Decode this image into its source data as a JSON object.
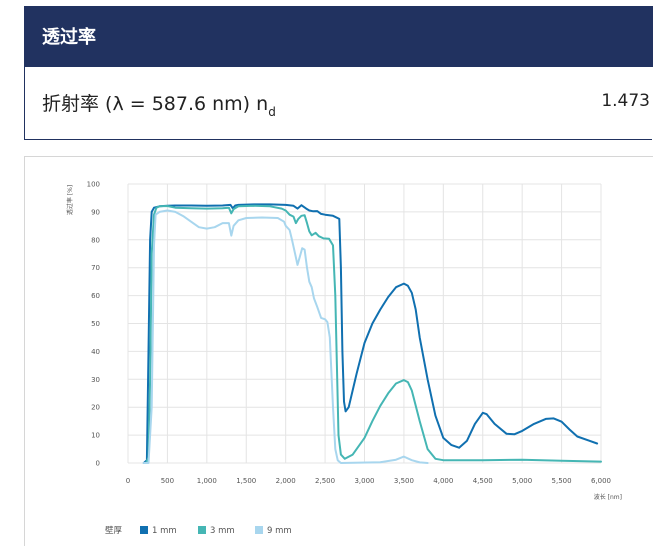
{
  "header": {
    "title": "透过率"
  },
  "property": {
    "label": "折射率 (λ = 587.6 nm) n",
    "subscript": "d",
    "value": "1.473"
  },
  "chart_data": {
    "type": "line",
    "xlabel": "波长 [nm]",
    "ylabel": "透过率 [%]",
    "xlim": [
      0,
      6000
    ],
    "ylim": [
      0,
      100
    ],
    "xticks": [
      0,
      500,
      1000,
      1500,
      2000,
      2500,
      3000,
      3500,
      4000,
      4500,
      5000,
      5500,
      6000
    ],
    "xtick_labels": [
      "0",
      "500",
      "1,000",
      "1,500",
      "2,000",
      "2,500",
      "3,000",
      "3,500",
      "4,000",
      "4,500",
      "5,000",
      "5,500",
      "6,000"
    ],
    "yticks": [
      0,
      10,
      20,
      30,
      40,
      50,
      60,
      70,
      80,
      90,
      100
    ],
    "grid": true,
    "legend": {
      "title": "壁厚",
      "position": "bottom-left"
    },
    "series": [
      {
        "name": "1 mm",
        "color": "#1070b0",
        "points": [
          [
            200,
            0
          ],
          [
            240,
            1
          ],
          [
            260,
            40
          ],
          [
            280,
            80
          ],
          [
            300,
            90
          ],
          [
            330,
            91.5
          ],
          [
            400,
            92
          ],
          [
            500,
            92.2
          ],
          [
            600,
            92.3
          ],
          [
            800,
            92.3
          ],
          [
            1000,
            92.2
          ],
          [
            1200,
            92.3
          ],
          [
            1300,
            92.5
          ],
          [
            1330,
            91.3
          ],
          [
            1360,
            92.3
          ],
          [
            1400,
            92.5
          ],
          [
            1600,
            92.7
          ],
          [
            1800,
            92.7
          ],
          [
            2000,
            92.5
          ],
          [
            2100,
            92.2
          ],
          [
            2150,
            91.2
          ],
          [
            2200,
            92.4
          ],
          [
            2260,
            91.2
          ],
          [
            2300,
            90.5
          ],
          [
            2350,
            90.2
          ],
          [
            2400,
            90.3
          ],
          [
            2450,
            89.3
          ],
          [
            2500,
            89
          ],
          [
            2600,
            88.6
          ],
          [
            2680,
            87.5
          ],
          [
            2700,
            70
          ],
          [
            2720,
            40
          ],
          [
            2740,
            22
          ],
          [
            2760,
            18.5
          ],
          [
            2800,
            20
          ],
          [
            2900,
            32
          ],
          [
            3000,
            43
          ],
          [
            3100,
            50
          ],
          [
            3200,
            55
          ],
          [
            3300,
            59.5
          ],
          [
            3400,
            63
          ],
          [
            3500,
            64.3
          ],
          [
            3550,
            63.5
          ],
          [
            3600,
            61
          ],
          [
            3650,
            55
          ],
          [
            3700,
            45
          ],
          [
            3800,
            30
          ],
          [
            3900,
            17
          ],
          [
            4000,
            9
          ],
          [
            4100,
            6.5
          ],
          [
            4200,
            5.5
          ],
          [
            4300,
            8
          ],
          [
            4400,
            14
          ],
          [
            4500,
            18
          ],
          [
            4550,
            17.5
          ],
          [
            4650,
            14
          ],
          [
            4800,
            10.5
          ],
          [
            4900,
            10.3
          ],
          [
            5000,
            11.5
          ],
          [
            5150,
            14
          ],
          [
            5300,
            15.8
          ],
          [
            5400,
            16
          ],
          [
            5500,
            14.8
          ],
          [
            5600,
            12
          ],
          [
            5700,
            9.5
          ],
          [
            5850,
            8
          ],
          [
            5950,
            7
          ]
        ]
      },
      {
        "name": "3 mm",
        "color": "#45b6b4",
        "points": [
          [
            230,
            0
          ],
          [
            260,
            2
          ],
          [
            280,
            30
          ],
          [
            300,
            75
          ],
          [
            330,
            89
          ],
          [
            360,
            91.5
          ],
          [
            400,
            92
          ],
          [
            500,
            92.1
          ],
          [
            600,
            91.5
          ],
          [
            800,
            91.3
          ],
          [
            1000,
            91.2
          ],
          [
            1200,
            91.3
          ],
          [
            1280,
            91.5
          ],
          [
            1310,
            89.5
          ],
          [
            1340,
            91
          ],
          [
            1400,
            92
          ],
          [
            1600,
            92.2
          ],
          [
            1800,
            92
          ],
          [
            1950,
            91.2
          ],
          [
            2000,
            90.5
          ],
          [
            2050,
            89
          ],
          [
            2100,
            88.3
          ],
          [
            2130,
            86
          ],
          [
            2160,
            87.5
          ],
          [
            2200,
            88.6
          ],
          [
            2240,
            88.8
          ],
          [
            2270,
            86
          ],
          [
            2300,
            83
          ],
          [
            2330,
            81.6
          ],
          [
            2380,
            82.5
          ],
          [
            2420,
            81.3
          ],
          [
            2480,
            80.5
          ],
          [
            2550,
            80.4
          ],
          [
            2600,
            78
          ],
          [
            2630,
            60
          ],
          [
            2650,
            35
          ],
          [
            2670,
            10
          ],
          [
            2700,
            3
          ],
          [
            2750,
            1.5
          ],
          [
            2850,
            3
          ],
          [
            3000,
            9
          ],
          [
            3100,
            15
          ],
          [
            3200,
            20.5
          ],
          [
            3300,
            25
          ],
          [
            3400,
            28.5
          ],
          [
            3500,
            29.7
          ],
          [
            3550,
            29
          ],
          [
            3600,
            26
          ],
          [
            3700,
            15
          ],
          [
            3800,
            5
          ],
          [
            3900,
            1.5
          ],
          [
            4000,
            1
          ],
          [
            4500,
            1
          ],
          [
            5000,
            1.2
          ],
          [
            5500,
            0.8
          ],
          [
            6000,
            0.5
          ]
        ]
      },
      {
        "name": "9 mm",
        "color": "#a8d6ee",
        "points": [
          [
            200,
            0
          ],
          [
            260,
            0
          ],
          [
            300,
            20
          ],
          [
            330,
            78
          ],
          [
            350,
            89
          ],
          [
            400,
            90
          ],
          [
            500,
            90.5
          ],
          [
            600,
            90
          ],
          [
            700,
            88.5
          ],
          [
            800,
            86.5
          ],
          [
            900,
            84.5
          ],
          [
            1000,
            84
          ],
          [
            1100,
            84.5
          ],
          [
            1200,
            86
          ],
          [
            1280,
            86
          ],
          [
            1310,
            81.5
          ],
          [
            1340,
            85
          ],
          [
            1400,
            87
          ],
          [
            1500,
            87.8
          ],
          [
            1700,
            88
          ],
          [
            1900,
            87.8
          ],
          [
            1980,
            86.5
          ],
          [
            2000,
            85
          ],
          [
            2050,
            83.5
          ],
          [
            2080,
            80
          ],
          [
            2120,
            75
          ],
          [
            2150,
            71
          ],
          [
            2180,
            74
          ],
          [
            2210,
            77
          ],
          [
            2240,
            76.5
          ],
          [
            2270,
            70
          ],
          [
            2300,
            65
          ],
          [
            2330,
            63
          ],
          [
            2360,
            59
          ],
          [
            2400,
            56
          ],
          [
            2450,
            52
          ],
          [
            2500,
            51.5
          ],
          [
            2530,
            50.5
          ],
          [
            2560,
            45
          ],
          [
            2600,
            20
          ],
          [
            2630,
            5
          ],
          [
            2660,
            1
          ],
          [
            2700,
            0
          ],
          [
            3200,
            0.3
          ],
          [
            3400,
            1.2
          ],
          [
            3500,
            2.3
          ],
          [
            3600,
            1
          ],
          [
            3700,
            0.2
          ],
          [
            3800,
            0
          ]
        ]
      }
    ]
  }
}
